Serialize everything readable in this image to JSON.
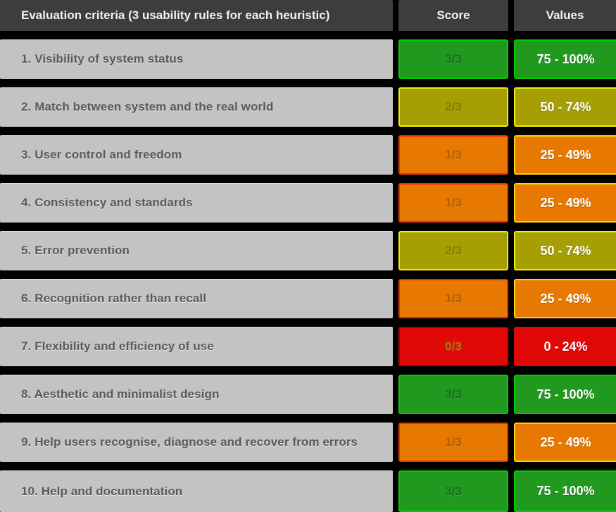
{
  "header": {
    "criteria": "Evaluation criteria (3 usability rules for each heuristic)",
    "score": "Score",
    "values": "Values"
  },
  "rows": [
    {
      "criteria": "1. Visibility of system status",
      "score": "3/3",
      "values": "75 - 100%",
      "level": "green"
    },
    {
      "criteria": "2. Match between system and the real world",
      "score": "2/3",
      "values": "50 - 74%",
      "level": "olive"
    },
    {
      "criteria": "3. User control and freedom",
      "score": "1/3",
      "values": "25 - 49%",
      "level": "orange"
    },
    {
      "criteria": "4. Consistency and standards",
      "score": "1/3",
      "values": "25 - 49%",
      "level": "orange"
    },
    {
      "criteria": "5. Error prevention",
      "score": "2/3",
      "values": "50 - 74%",
      "level": "olive"
    },
    {
      "criteria": "6. Recognition rather than recall",
      "score": "1/3",
      "values": "25 - 49%",
      "level": "orange"
    },
    {
      "criteria": "7. Flexibility and efficiency of use",
      "score": "0/3",
      "values": "0 - 24%",
      "level": "red"
    },
    {
      "criteria": "8. Aesthetic and minimalist design",
      "score": "3/3",
      "values": "75 - 100%",
      "level": "green"
    },
    {
      "criteria": "9. Help users recognise, diagnose and recover from errors",
      "score": "1/3",
      "values": "25 - 49%",
      "level": "orange"
    },
    {
      "criteria": "10. Help and documentation",
      "score": "3/3",
      "values": "75 - 100%",
      "level": "green"
    }
  ],
  "colors": {
    "background": "#000000",
    "header_bg": "#3d3d3d",
    "header_text": "#f2f2f2",
    "row_bg": "#c3c3c3",
    "row_text": "#595959",
    "values_text": "#ffffff",
    "green": {
      "bg": "#21991f",
      "border": "#00cc00",
      "score_text": "#11701a",
      "values_border": "#00cc00"
    },
    "olive": {
      "bg": "#a59f03",
      "border": "#f4ee00",
      "score_text": "#827c00",
      "values_border": "#f4ee00"
    },
    "orange": {
      "bg": "#e77902",
      "border": "#f42a00",
      "score_text": "#b05c00",
      "values_border": "#ffd400"
    },
    "red": {
      "bg": "#e10808",
      "border": "#b50000",
      "score_text": "#9e7b13",
      "values_border": "#e10808"
    }
  },
  "chart_data": {
    "type": "table",
    "title": "Heuristic evaluation scorecard",
    "columns": [
      "Evaluation criteria (3 usability rules for each heuristic)",
      "Score",
      "Values"
    ],
    "rows": [
      [
        "1. Visibility of system status",
        "3/3",
        "75 - 100%"
      ],
      [
        "2. Match between system and the real world",
        "2/3",
        "50 - 74%"
      ],
      [
        "3. User control and freedom",
        "1/3",
        "25 - 49%"
      ],
      [
        "4. Consistency and standards",
        "1/3",
        "25 - 49%"
      ],
      [
        "5. Error prevention",
        "2/3",
        "50 - 74%"
      ],
      [
        "6. Recognition rather than recall",
        "1/3",
        "25 - 49%"
      ],
      [
        "7. Flexibility and efficiency of use",
        "0/3",
        "0 - 24%"
      ],
      [
        "8. Aesthetic and minimalist design",
        "3/3",
        "75 - 100%"
      ],
      [
        "9. Help users recognise, diagnose and recover from errors",
        "1/3",
        "25 - 49%"
      ],
      [
        "10. Help and documentation",
        "3/3",
        "75 - 100%"
      ]
    ],
    "score_scale": {
      "min": "0/3",
      "max": "3/3"
    },
    "value_bands": [
      "0 - 24%",
      "25 - 49%",
      "50 - 74%",
      "75 - 100%"
    ],
    "legend_colors": {
      "3/3": "#21991f",
      "2/3": "#a59f03",
      "1/3": "#e77902",
      "0/3": "#e10808"
    }
  }
}
